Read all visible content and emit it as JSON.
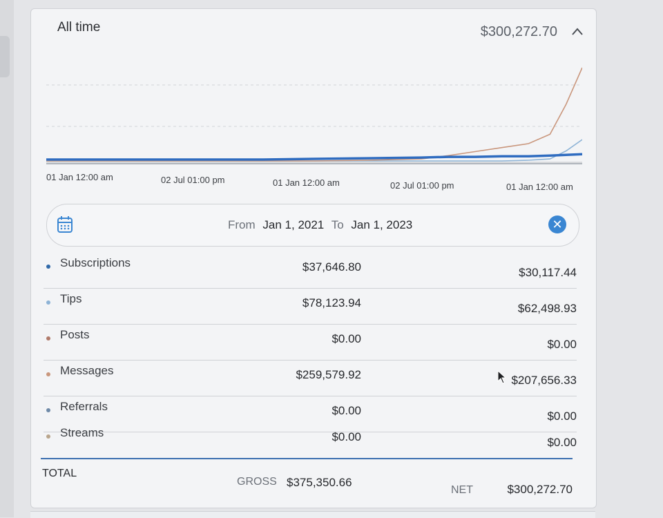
{
  "period_label": "All time",
  "total_value": "$300,272.70",
  "chart_data": {
    "type": "line",
    "x_tick_labels": [
      "01 Jan 12:00 am",
      "02 Jul 01:00 pm",
      "01 Jan 12:00 am",
      "02 Jul 01:00 pm",
      "01 Jan 12:00 am"
    ],
    "x": [
      0,
      0.1,
      0.2,
      0.3,
      0.4,
      0.5,
      0.6,
      0.7,
      0.75,
      0.8,
      0.85,
      0.9,
      0.94,
      0.97,
      1.0
    ],
    "series": [
      {
        "color": "#2f6cc0",
        "values": [
          0,
          0,
          0,
          0,
          0,
          1,
          2,
          3,
          4,
          4,
          5,
          5,
          6,
          7,
          8
        ]
      },
      {
        "color": "#c9967c",
        "values": [
          0,
          0,
          0,
          0,
          0,
          0,
          1,
          3,
          8,
          14,
          20,
          26,
          40,
          85,
          140
        ]
      },
      {
        "color": "#8db3d6",
        "values": [
          0,
          0,
          0,
          0,
          0,
          0,
          0,
          0,
          0,
          0,
          0,
          1,
          3,
          15,
          32
        ]
      },
      {
        "color": "#9aa0a8",
        "values": [
          0,
          0,
          0,
          0,
          0,
          0,
          0,
          0,
          0,
          0,
          0,
          0,
          0,
          0,
          0
        ]
      }
    ],
    "grid": true
  },
  "date_range": {
    "from_label": "From",
    "from_value": "Jan 1, 2021",
    "to_label": "To",
    "to_value": "Jan 1, 2023"
  },
  "rows": [
    {
      "category": "Subscriptions",
      "gross": "$37,646.80",
      "net": "$30,117.44",
      "dot_color": "#2f68a8"
    },
    {
      "category": "Tips",
      "gross": "$78,123.94",
      "net": "$62,498.93",
      "dot_color": "#8db3d6"
    },
    {
      "category": "Posts",
      "gross": "$0.00",
      "net": "$0.00",
      "dot_color": "#b07a6a"
    },
    {
      "category": "Messages",
      "gross": "$259,579.92",
      "net": "$207,656.33",
      "dot_color": "#c9967c"
    },
    {
      "category": "Referrals",
      "gross": "$0.00",
      "net": "$0.00",
      "dot_color": "#6f8aa8"
    },
    {
      "category": "Streams",
      "gross": "$0.00",
      "net": "$0.00",
      "dot_color": "#b9a58c"
    }
  ],
  "totals": {
    "label": "TOTAL",
    "gross_label": "GROSS",
    "gross_value": "$375,350.66",
    "net_label": "NET",
    "net_value": "$300,272.70"
  }
}
